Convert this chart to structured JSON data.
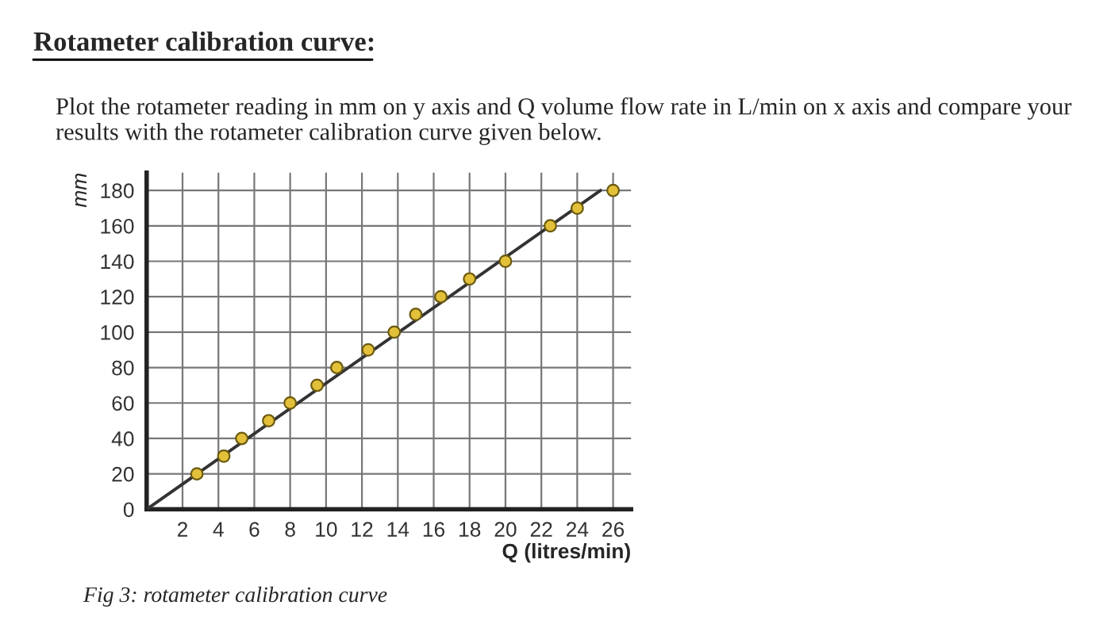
{
  "chart_data": {
    "type": "scatter",
    "title": "Rotameter calibration curve:",
    "subtitle": "Plot the rotameter reading in mm on y axis and Q volume flow rate in L/min on x axis and compare your results with the rotameter calibration curve given below.",
    "xlabel": "Q (litres/min)",
    "ylabel": "mm",
    "annotations": [
      "Fig 3: rotameter calibration curve"
    ],
    "series": [
      {
        "color": "#e3c03a",
        "marker": "circle",
        "x": [
          2.8,
          4.3,
          5.3,
          6.8,
          8.0,
          9.5,
          10.6,
          12.35,
          13.8,
          15.0,
          16.4,
          18.0,
          20.0,
          22.5,
          24.0,
          26.0
        ],
        "values": [
          20,
          30,
          40,
          50,
          60,
          70,
          80,
          90,
          100,
          110,
          120,
          130,
          140,
          160,
          170,
          180
        ]
      },
      {
        "type": "line",
        "marker": "none",
        "color": "#333333",
        "x": [
          0,
          25.3
        ],
        "values": [
          0,
          180
        ]
      }
    ],
    "xlim": [
      0,
      27
    ],
    "ylim": [
      0,
      190
    ],
    "xticks": [
      2,
      4,
      6,
      8,
      10,
      12,
      14,
      16,
      18,
      20,
      22,
      24,
      26
    ],
    "yticks": [
      {
        "value": 0,
        "label": "0"
      },
      20,
      40,
      60,
      80,
      100,
      120,
      140,
      160,
      180
    ],
    "grid": true
  }
}
